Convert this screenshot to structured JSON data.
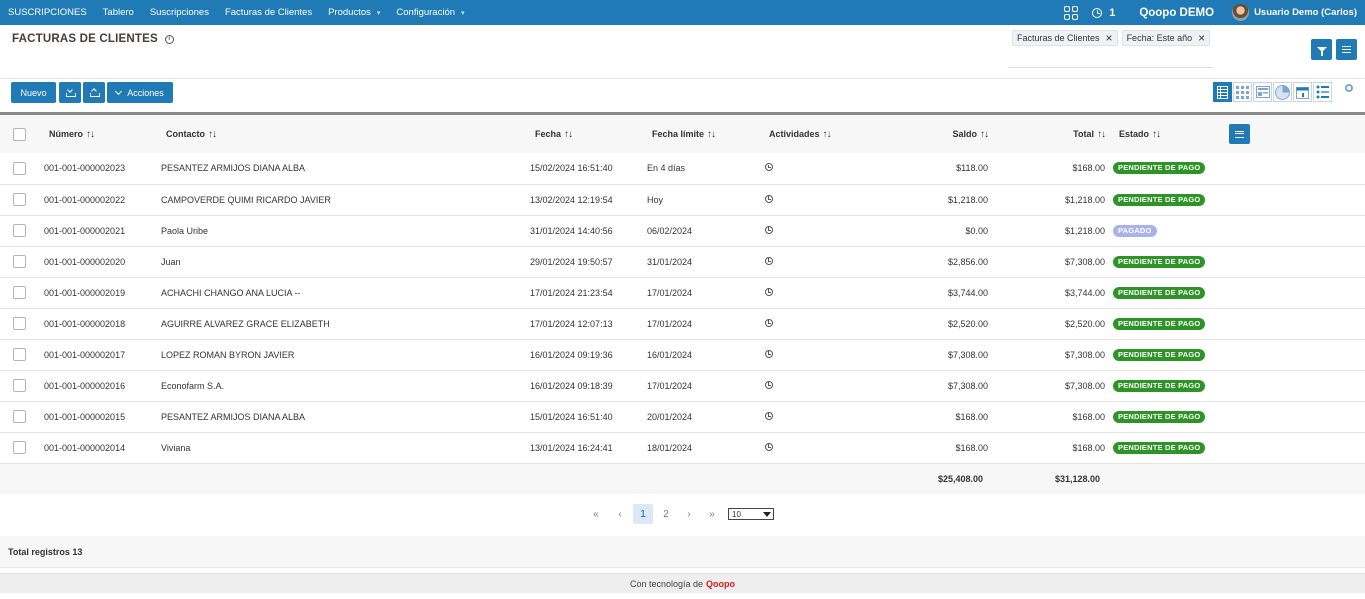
{
  "nav": {
    "items": [
      {
        "label": "SUSCRIPCIONES",
        "caret": false
      },
      {
        "label": "Tablero",
        "caret": false
      },
      {
        "label": "Suscripciones",
        "caret": false
      },
      {
        "label": "Facturas de Clientes",
        "caret": false
      },
      {
        "label": "Productos",
        "caret": true
      },
      {
        "label": "Configuración",
        "caret": true
      }
    ],
    "activity_count": "1",
    "company": "Qoopo DEMO",
    "user": "Usuario Demo (Carlos)"
  },
  "header": {
    "title": "FACTURAS DE CLIENTES",
    "filters": [
      "Facturas de Clientes",
      "Fecha: Este año"
    ]
  },
  "toolbar": {
    "new_label": "Nuevo",
    "actions_label": "Acciones"
  },
  "table": {
    "columns": {
      "numero": "Número",
      "contacto": "Contacto",
      "fecha": "Fecha",
      "fecha_limite": "Fecha límite",
      "actividades": "Actividades",
      "saldo": "Saldo",
      "total": "Total",
      "estado": "Estado"
    },
    "rows": [
      {
        "numero": "001-001-000002023",
        "contacto": "PESANTEZ ARMIJOS DIANA ALBA",
        "fecha": "15/02/2024 16:51:40",
        "limite": "En 4 días",
        "saldo": "$118.00",
        "total": "$168.00",
        "estado": "PENDIENTE DE PAGO",
        "status_color": "#2e9427"
      },
      {
        "numero": "001-001-000002022",
        "contacto": "CAMPOVERDE QUIMI RICARDO JAVIER",
        "fecha": "13/02/2024 12:19:54",
        "limite": "Hoy",
        "saldo": "$1,218.00",
        "total": "$1,218.00",
        "estado": "PENDIENTE DE PAGO",
        "status_color": "#2e9427"
      },
      {
        "numero": "001-001-000002021",
        "contacto": "Paola Uribe",
        "fecha": "31/01/2024 14:40:56",
        "limite": "06/02/2024",
        "saldo": "$0.00",
        "total": "$1,218.00",
        "estado": "PAGADO",
        "status_color": "#a9b3ea"
      },
      {
        "numero": "001-001-000002020",
        "contacto": "Juan",
        "fecha": "29/01/2024 19:50:57",
        "limite": "31/01/2024",
        "saldo": "$2,856.00",
        "total": "$7,308.00",
        "estado": "PENDIENTE DE PAGO",
        "status_color": "#2e9427"
      },
      {
        "numero": "001-001-000002019",
        "contacto": "ACHACHI CHANGO ANA LUCIA --",
        "fecha": "17/01/2024 21:23:54",
        "limite": "17/01/2024",
        "saldo": "$3,744.00",
        "total": "$3,744.00",
        "estado": "PENDIENTE DE PAGO",
        "status_color": "#2e9427"
      },
      {
        "numero": "001-001-000002018",
        "contacto": "AGUIRRE ALVAREZ GRACE ELIZABETH",
        "fecha": "17/01/2024 12:07:13",
        "limite": "17/01/2024",
        "saldo": "$2,520.00",
        "total": "$2,520.00",
        "estado": "PENDIENTE DE PAGO",
        "status_color": "#2e9427"
      },
      {
        "numero": "001-001-000002017",
        "contacto": "LOPEZ ROMAN BYRON JAVIER",
        "fecha": "16/01/2024 09:19:36",
        "limite": "16/01/2024",
        "saldo": "$7,308.00",
        "total": "$7,308.00",
        "estado": "PENDIENTE DE PAGO",
        "status_color": "#2e9427"
      },
      {
        "numero": "001-001-000002016",
        "contacto": "Econofarm S.A.",
        "fecha": "16/01/2024 09:18:39",
        "limite": "17/01/2024",
        "saldo": "$7,308.00",
        "total": "$7,308.00",
        "estado": "PENDIENTE DE PAGO",
        "status_color": "#2e9427"
      },
      {
        "numero": "001-001-000002015",
        "contacto": "PESANTEZ ARMIJOS DIANA ALBA",
        "fecha": "15/01/2024 16:51:40",
        "limite": "20/01/2024",
        "saldo": "$168.00",
        "total": "$168.00",
        "estado": "PENDIENTE DE PAGO",
        "status_color": "#2e9427"
      },
      {
        "numero": "001-001-000002014",
        "contacto": "Viviana",
        "fecha": "13/01/2024 16:24:41",
        "limite": "18/01/2024",
        "saldo": "$168.00",
        "total": "$168.00",
        "estado": "PENDIENTE DE PAGO",
        "status_color": "#2e9427"
      }
    ],
    "sum_saldo": "$25,408.00",
    "sum_total": "$31,128.00"
  },
  "pagination": {
    "pages": [
      "1",
      "2"
    ],
    "current": "1",
    "page_size": "10"
  },
  "total_records": "Total registros 13",
  "footer": {
    "prefix": "Con tecnología de",
    "brand": "Qoopo"
  },
  "colors": {
    "primary": "#1f7ab5",
    "pending": "#2e9427",
    "paid": "#a9b3ea",
    "brand": "#d21f1f"
  }
}
